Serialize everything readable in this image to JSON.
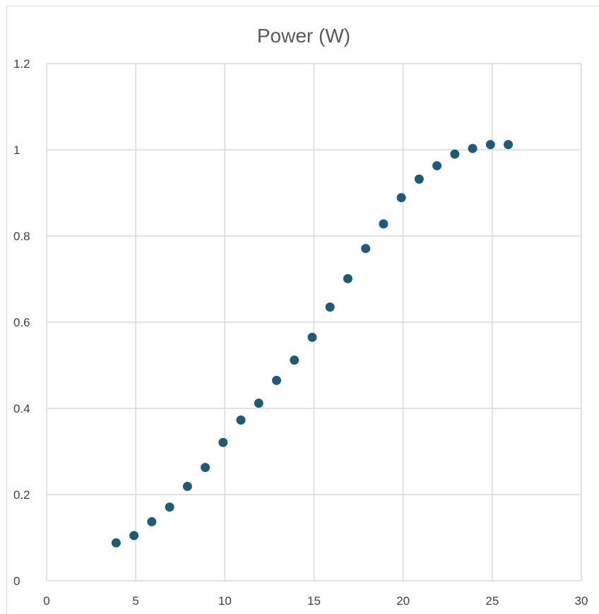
{
  "chart_data": {
    "type": "scatter",
    "title": "Power (W)",
    "xlabel": "",
    "ylabel": "",
    "xlim": [
      0,
      30
    ],
    "ylim": [
      0,
      1.2
    ],
    "x_ticks": [
      "0",
      "5",
      "10",
      "15",
      "20",
      "25",
      "30"
    ],
    "y_ticks": [
      "0",
      "0.2",
      "0.4",
      "0.6",
      "0.8",
      "1",
      "1.2"
    ],
    "grid": true,
    "legend": "none",
    "marker_color": "#1f5b79",
    "series": [
      {
        "x": [
          3.9,
          4.9,
          5.9,
          6.9,
          7.9,
          8.9,
          9.9,
          10.9,
          11.9,
          12.9,
          13.9,
          14.9,
          15.9,
          16.9,
          17.9,
          18.9,
          19.9,
          20.9,
          21.9,
          22.9,
          23.9,
          24.9,
          25.9
        ],
        "y": [
          0.088,
          0.105,
          0.137,
          0.171,
          0.219,
          0.263,
          0.321,
          0.373,
          0.412,
          0.465,
          0.512,
          0.565,
          0.635,
          0.701,
          0.771,
          0.828,
          0.889,
          0.932,
          0.963,
          0.99,
          1.003,
          1.012,
          1.012
        ]
      }
    ]
  }
}
